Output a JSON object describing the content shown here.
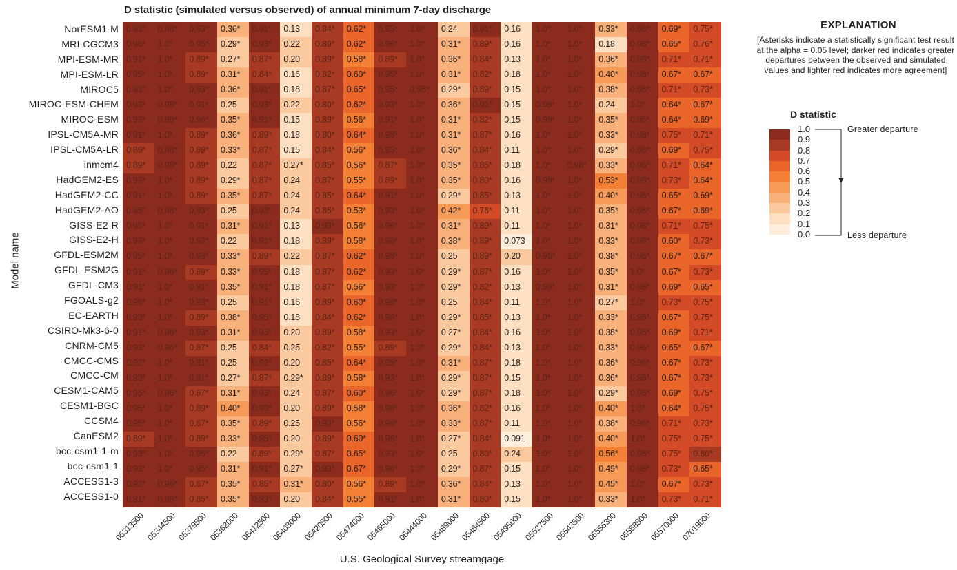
{
  "chart_data": {
    "type": "heatmap",
    "title": "D statistic (simulated versus observed) of annual minimum 7-day discharge",
    "xlabel": "U.S. Geological Survey streamgage",
    "ylabel": "Model name",
    "x": [
      "05313500",
      "05344500",
      "05379500",
      "05362000",
      "05412500",
      "05408000",
      "05420500",
      "05474000",
      "05465000",
      "05444000",
      "05489000",
      "05484500",
      "05495000",
      "05527500",
      "05543500",
      "05555300",
      "05568500",
      "05570000",
      "07019000"
    ],
    "y": [
      "NorESM1-M",
      "MRI-CGCM3",
      "MPI-ESM-MR",
      "MPI-ESM-LR",
      "MIROC5",
      "MIROC-ESM-CHEM",
      "MIROC-ESM",
      "IPSL-CM5A-MR",
      "IPSL-CM5A-LR",
      "inmcm4",
      "HadGEM2-ES",
      "HadGEM2-CC",
      "HadGEM2-AO",
      "GISS-E2-R",
      "GISS-E2-H",
      "GFDL-ESM2M",
      "GFDL-ESM2G",
      "GFDL-CM3",
      "FGOALS-g2",
      "EC-EARTH",
      "CSIRO-Mk3-6-0",
      "CNRM-CM5",
      "CMCC-CMS",
      "CMCC-CM",
      "CESM1-CAM5",
      "CESM1-BGC",
      "CCSM4",
      "CanESM2",
      "bcc-csm1-1-m",
      "bcc-csm1-1",
      "ACCESS1-3",
      "ACCESS1-0"
    ],
    "cells": [
      [
        "0.93*",
        "0.98*",
        "0.93*",
        "0.36*",
        "0.91*",
        "0.13",
        "0.84*",
        "0.62*",
        "0.95*",
        "1.0*",
        "0.24",
        "0.91*",
        "0.16",
        "1.0*",
        "1.0*",
        "0.33*",
        "0.98*",
        "0.69*",
        "0.75*"
      ],
      [
        "0.96*",
        "1.0*",
        "0.95*",
        "0.29*",
        "0.93*",
        "0.22",
        "0.89*",
        "0.62*",
        "0.96*",
        "1.0*",
        "0.31*",
        "0.89*",
        "0.16",
        "1.0*",
        "1.0*",
        "0.18",
        "0.98*",
        "0.65*",
        "0.76*"
      ],
      [
        "0.91*",
        "1.0*",
        "0.89*",
        "0.27*",
        "0.87*",
        "0.20",
        "0.89*",
        "0.58*",
        "0.89*",
        "1.0*",
        "0.36*",
        "0.84*",
        "0.13",
        "1.0*",
        "1.0*",
        "0.36*",
        "0.98*",
        "0.71*",
        "0.71*"
      ],
      [
        "0.95*",
        "1.0*",
        "0.89*",
        "0.31*",
        "0.84*",
        "0.16",
        "0.82*",
        "0.60*",
        "0.95*",
        "1.0*",
        "0.31*",
        "0.82*",
        "0.18",
        "1.0*",
        "1.0*",
        "0.40*",
        "0.98*",
        "0.67*",
        "0.67*"
      ],
      [
        "0.93*",
        "1.0*",
        "0.93*",
        "0.36*",
        "0.91*",
        "0.18",
        "0.87*",
        "0.65*",
        "0.95*",
        "0.98*",
        "0.29*",
        "0.89*",
        "0.15",
        "1.0*",
        "1.0*",
        "0.38*",
        "0.98*",
        "0.71*",
        "0.73*"
      ],
      [
        "0.93*",
        "0.98*",
        "0.91*",
        "0.25",
        "0.93*",
        "0.22",
        "0.80*",
        "0.62*",
        "0.93*",
        "1.0*",
        "0.36*",
        "0.91*",
        "0.15",
        "0.98*",
        "1.0*",
        "0.24",
        "1.0*",
        "0.64*",
        "0.67*"
      ],
      [
        "0.93*",
        "0.98*",
        "0.96*",
        "0.35*",
        "0.91*",
        "0.15",
        "0.89*",
        "0.56*",
        "0.91*",
        "1.0*",
        "0.31*",
        "0.82*",
        "0.15",
        "0.98*",
        "1.0*",
        "0.35*",
        "0.95*",
        "0.64*",
        "0.69*"
      ],
      [
        "0.91*",
        "1.0*",
        "0.89*",
        "0.36*",
        "0.89*",
        "0.18",
        "0.80*",
        "0.64*",
        "0.98*",
        "1.0*",
        "0.31*",
        "0.87*",
        "0.16",
        "1.0*",
        "1.0*",
        "0.33*",
        "0.98*",
        "0.75*",
        "0.71*"
      ],
      [
        "0.89*",
        "0.98*",
        "0.89*",
        "0.33*",
        "0.87*",
        "0.15",
        "0.84*",
        "0.56*",
        "0.95*",
        "1.0*",
        "0.36*",
        "0.84*",
        "0.11",
        "1.0*",
        "1.0*",
        "0.29*",
        "0.98*",
        "0.69*",
        "0.75*"
      ],
      [
        "0.89*",
        "0.98*",
        "0.89*",
        "0.22",
        "0.87*",
        "0.27*",
        "0.85*",
        "0.56*",
        "0.87*",
        "1.0*",
        "0.35*",
        "0.85*",
        "0.18",
        "1.0*",
        "0.98*",
        "0.33*",
        "0.96*",
        "0.71*",
        "0.64*"
      ],
      [
        "0.93*",
        "1.0*",
        "0.89*",
        "0.29*",
        "0.87*",
        "0.24",
        "0.87*",
        "0.55*",
        "0.89*",
        "1.0*",
        "0.35*",
        "0.80*",
        "0.16",
        "0.98*",
        "1.0*",
        "0.53*",
        "0.98*",
        "0.73*",
        "0.64*"
      ],
      [
        "0.91*",
        "1.0*",
        "0.89*",
        "0.35*",
        "0.87*",
        "0.24",
        "0.85*",
        "0.64*",
        "0.91*",
        "1.0*",
        "0.29*",
        "0.85*",
        "0.13",
        "1.0*",
        "1.0*",
        "0.40*",
        "0.96*",
        "0.65*",
        "0.69*"
      ],
      [
        "0.95*",
        "0.98*",
        "0.93*",
        "0.25",
        "0.93*",
        "0.24",
        "0.85*",
        "0.53*",
        "0.93*",
        "1.0*",
        "0.42*",
        "0.76*",
        "0.11",
        "1.0*",
        "1.0*",
        "0.35*",
        "0.98*",
        "0.67*",
        "0.69*"
      ],
      [
        "0.95*",
        "1.0*",
        "0.91*",
        "0.31*",
        "0.91*",
        "0.13",
        "0.93*",
        "0.56*",
        "0.96*",
        "1.0*",
        "0.31*",
        "0.89*",
        "0.11",
        "1.0*",
        "1.0*",
        "0.31*",
        "0.98*",
        "0.71*",
        "0.75*"
      ],
      [
        "0.93*",
        "1.0*",
        "0.93*",
        "0.22",
        "0.91*",
        "0.18",
        "0.89*",
        "0.58*",
        "0.96*",
        "1.0*",
        "0.38*",
        "0.89*",
        "0.073",
        "1.0*",
        "1.0*",
        "0.33*",
        "0.98*",
        "0.60*",
        "0.73*"
      ],
      [
        "0.95*",
        "1.0*",
        "0.93*",
        "0.33*",
        "0.89*",
        "0.22",
        "0.87*",
        "0.62*",
        "0.98*",
        "1.0*",
        "0.25",
        "0.89*",
        "0.20",
        "0.96*",
        "1.0*",
        "0.38*",
        "0.96*",
        "0.67*",
        "0.67*"
      ],
      [
        "0.91*",
        "0.98*",
        "0.89*",
        "0.33*",
        "0.95*",
        "0.18",
        "0.87*",
        "0.62*",
        "0.93*",
        "1.0*",
        "0.29*",
        "0.87*",
        "0.16",
        "1.0*",
        "1.0*",
        "0.35*",
        "1.0*",
        "0.67*",
        "0.73*"
      ],
      [
        "0.91*",
        "1.0*",
        "0.91*",
        "0.35*",
        "0.91*",
        "0.18",
        "0.87*",
        "0.56*",
        "0.93*",
        "1.0*",
        "0.29*",
        "0.82*",
        "0.13",
        "0.98*",
        "1.0*",
        "0.31*",
        "0.98*",
        "0.69*",
        "0.65*"
      ],
      [
        "0.96*",
        "1.0*",
        "0.93*",
        "0.25",
        "0.91*",
        "0.16",
        "0.89*",
        "0.60*",
        "0.98*",
        "1.0*",
        "0.25",
        "0.84*",
        "0.11",
        "1.0*",
        "1.0*",
        "0.27*",
        "1.0*",
        "0.73*",
        "0.75*"
      ],
      [
        "0.93*",
        "1.0*",
        "0.89*",
        "0.38*",
        "0.95*",
        "0.18",
        "0.84*",
        "0.62*",
        "0.98*",
        "1.0*",
        "0.29*",
        "0.85*",
        "0.13",
        "1.0*",
        "1.0*",
        "0.33*",
        "0.96*",
        "0.67*",
        "0.75*"
      ],
      [
        "0.91*",
        "0.98*",
        "0.93*",
        "0.31*",
        "0.93*",
        "0.20",
        "0.89*",
        "0.58*",
        "0.93*",
        "1.0*",
        "0.27*",
        "0.84*",
        "0.16",
        "1.0*",
        "1.0*",
        "0.38*",
        "0.98*",
        "0.69*",
        "0.71*"
      ],
      [
        "0.93*",
        "0.96*",
        "0.87*",
        "0.25",
        "0.84*",
        "0.25",
        "0.82*",
        "0.55*",
        "0.89*",
        "1.0*",
        "0.29*",
        "0.84*",
        "0.13",
        "1.0*",
        "1.0*",
        "0.33*",
        "0.96*",
        "0.65*",
        "0.67*"
      ],
      [
        "0.93*",
        "1.0*",
        "0.91*",
        "0.25",
        "0.93*",
        "0.20",
        "0.85*",
        "0.64*",
        "0.95*",
        "1.0*",
        "0.31*",
        "0.87*",
        "0.18",
        "1.0*",
        "1.0*",
        "0.36*",
        "0.96*",
        "0.67*",
        "0.73*"
      ],
      [
        "0.93*",
        "1.0*",
        "0.91*",
        "0.27*",
        "0.87*",
        "0.29*",
        "0.89*",
        "0.58*",
        "0.93*",
        "1.0*",
        "0.29*",
        "0.87*",
        "0.15",
        "1.0*",
        "1.0*",
        "0.36*",
        "0.96*",
        "0.67*",
        "0.73*"
      ],
      [
        "0.95*",
        "0.96*",
        "0.87*",
        "0.31*",
        "0.93*",
        "0.24",
        "0.87*",
        "0.60*",
        "0.96*",
        "1.0*",
        "0.29*",
        "0.87*",
        "0.18",
        "1.0*",
        "1.0*",
        "0.29*",
        "0.98*",
        "0.69*",
        "0.75*"
      ],
      [
        "0.95*",
        "1.0*",
        "0.89*",
        "0.40*",
        "0.93*",
        "0.20",
        "0.89*",
        "0.58*",
        "0.98*",
        "1.0*",
        "0.36*",
        "0.82*",
        "0.16",
        "1.0*",
        "1.0*",
        "0.40*",
        "1.0*",
        "0.64*",
        "0.75*"
      ],
      [
        "0.95*",
        "1.0*",
        "0.87*",
        "0.35*",
        "0.89*",
        "0.25",
        "0.93*",
        "0.56*",
        "0.96*",
        "1.0*",
        "0.33*",
        "0.87*",
        "0.11",
        "1.0*",
        "1.0*",
        "0.38*",
        "0.96*",
        "0.71*",
        "0.73*"
      ],
      [
        "0.89*",
        "1.0*",
        "0.89*",
        "0.33*",
        "0.95*",
        "0.20",
        "0.89*",
        "0.60*",
        "0.96*",
        "1.0*",
        "0.27*",
        "0.84*",
        "0.091",
        "1.0*",
        "1.0*",
        "0.40*",
        "1.0*",
        "0.75*",
        "0.75*"
      ],
      [
        "0.93*",
        "1.0*",
        "0.95*",
        "0.22",
        "0.89*",
        "0.29*",
        "0.87*",
        "0.65*",
        "0.93*",
        "1.0*",
        "0.25",
        "0.80*",
        "0.24",
        "1.0*",
        "1.0*",
        "0.56*",
        "0.98*",
        "0.75*",
        "0.80*"
      ],
      [
        "0.93*",
        "1.0*",
        "0.95*",
        "0.31*",
        "0.91*",
        "0.27*",
        "0.93*",
        "0.67*",
        "0.96*",
        "1.0*",
        "0.29*",
        "0.87*",
        "0.15",
        "1.0*",
        "1.0*",
        "0.49*",
        "0.98*",
        "0.73*",
        "0.65*"
      ],
      [
        "0.93*",
        "0.96*",
        "0.87*",
        "0.35*",
        "0.85*",
        "0.31*",
        "0.80*",
        "0.56*",
        "0.89*",
        "1.0*",
        "0.36*",
        "0.84*",
        "0.13",
        "1.0*",
        "1.0*",
        "0.45*",
        "1.0*",
        "0.67*",
        "0.73*"
      ],
      [
        "0.91*",
        "0.98*",
        "0.85*",
        "0.35*",
        "0.93*",
        "0.20",
        "0.84*",
        "0.55*",
        "0.91*",
        "1.0*",
        "0.31*",
        "0.80*",
        "0.15",
        "1.0*",
        "1.0*",
        "0.33*",
        "1.0*",
        "0.73*",
        "0.71*"
      ]
    ],
    "significance_marker": "*",
    "colorbar": {
      "label": "D statistic",
      "ticks": [
        "1.0",
        "0.9",
        "0.8",
        "0.7",
        "0.6",
        "0.5",
        "0.4",
        "0.3",
        "0.2",
        "0.1",
        "0.0"
      ],
      "range": [
        0,
        1
      ],
      "colors": [
        "#8b2b1e",
        "#a83a23",
        "#d24a26",
        "#e9652a",
        "#f38034",
        "#f69a58",
        "#f8b17a",
        "#fbc99e",
        "#fde0c2",
        "#feeedc"
      ]
    },
    "legend_position": "right"
  },
  "legend": {
    "heading": "EXPLANATION",
    "note": "[Asterisks indicate a statistically significant test result at the alpha = 0.05 level; darker red indicates greater departures between the observed and simulated values and lighter red indicates more agreement]",
    "subheading": "D statistic",
    "top_label": "Greater departure",
    "bottom_label": "Less departure"
  }
}
